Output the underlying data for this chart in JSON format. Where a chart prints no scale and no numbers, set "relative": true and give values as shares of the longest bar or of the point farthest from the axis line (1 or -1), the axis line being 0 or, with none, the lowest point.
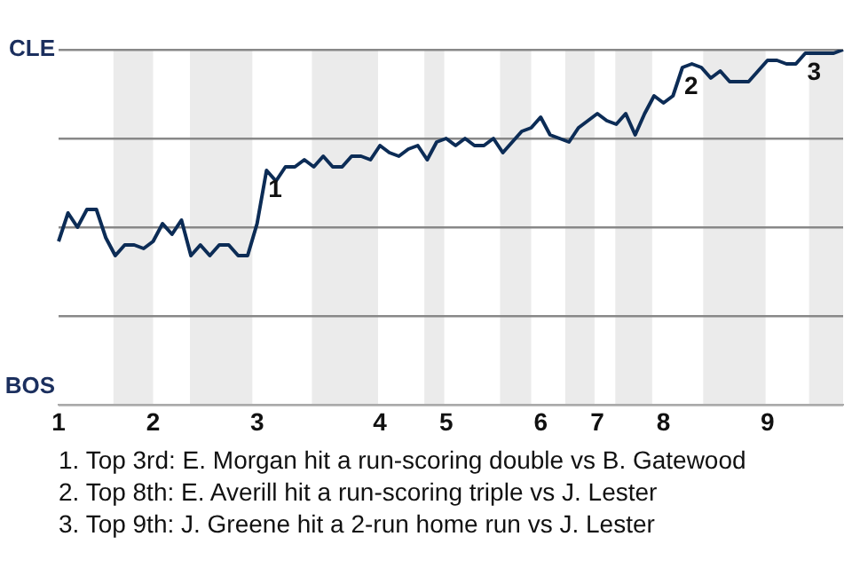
{
  "chart_data": {
    "type": "line",
    "categories": [
      "1",
      null,
      null,
      null,
      null,
      null,
      null,
      null,
      null,
      null,
      "2",
      null,
      null,
      null,
      null,
      null,
      null,
      null,
      null,
      null,
      null,
      "3",
      null,
      null,
      null,
      null,
      null,
      null,
      null,
      null,
      null,
      null,
      null,
      null,
      "4",
      null,
      null,
      null,
      null,
      null,
      null,
      "5",
      null,
      null,
      null,
      null,
      null,
      null,
      null,
      null,
      null,
      "6",
      null,
      null,
      null,
      null,
      null,
      "7",
      null,
      null,
      null,
      null,
      null,
      null,
      "8",
      null,
      null,
      null,
      null,
      null,
      null,
      null,
      null,
      null,
      null,
      "9",
      null,
      null,
      null,
      null,
      null,
      null,
      null,
      null
    ],
    "series": [
      {
        "color": "#0c2c56",
        "values": [
          0.46,
          0.54,
          0.5,
          0.55,
          0.55,
          0.47,
          0.42,
          0.45,
          0.45,
          0.44,
          0.46,
          0.51,
          0.48,
          0.52,
          0.42,
          0.45,
          0.42,
          0.45,
          0.45,
          0.42,
          0.42,
          0.51,
          0.66,
          0.63,
          0.67,
          0.67,
          0.69,
          0.67,
          0.7,
          0.67,
          0.67,
          0.7,
          0.7,
          0.69,
          0.73,
          0.71,
          0.7,
          0.72,
          0.73,
          0.69,
          0.74,
          0.75,
          0.73,
          0.75,
          0.73,
          0.73,
          0.75,
          0.71,
          0.74,
          0.77,
          0.78,
          0.81,
          0.76,
          0.75,
          0.74,
          0.78,
          0.8,
          0.82,
          0.8,
          0.79,
          0.82,
          0.76,
          0.82,
          0.87,
          0.85,
          0.87,
          0.95,
          0.96,
          0.95,
          0.92,
          0.94,
          0.91,
          0.91,
          0.91,
          0.94,
          0.97,
          0.97,
          0.96,
          0.96,
          0.99,
          0.99,
          0.99,
          0.99,
          1.0
        ]
      }
    ],
    "relative": true,
    "grid": "y",
    "marker": "none",
    "line_style": "solid",
    "annotations": [
      "CLE",
      "BOS",
      "1",
      "2",
      "3",
      "1. Top 3rd: E. Morgan hit a run-scoring double vs B. Gatewood",
      "2. Top 8th: E. Averill hit a run-scoring triple vs J. Lester",
      "3. Top 9th: J. Greene hit a 2-run home run vs J. Lester"
    ]
  }
}
